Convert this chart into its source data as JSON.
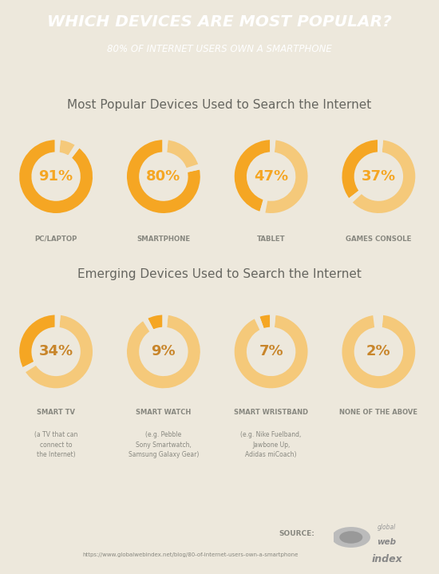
{
  "title": "WHICH DEVICES ARE MOST POPULAR?",
  "subtitle": "80% OF INTERNET USERS OWN A SMARTPHONE",
  "header_bg": "#F5B942",
  "bg_color": "#EDE8DC",
  "section1_title": "Most Popular Devices Used to Search the Internet",
  "section2_title": "Emerging Devices Used to Search the Internet",
  "popular_devices": [
    {
      "label": "PC/LAPTOP",
      "pct": 91,
      "color_main": "#F5A623",
      "color_light": "#F5C97A"
    },
    {
      "label": "SMARTPHONE",
      "pct": 80,
      "color_main": "#F5A623",
      "color_light": "#F5C97A"
    },
    {
      "label": "TABLET",
      "pct": 47,
      "color_main": "#F5A623",
      "color_light": "#F5C97A"
    },
    {
      "label": "GAMES CONSOLE",
      "pct": 37,
      "color_main": "#F5A623",
      "color_light": "#F5C97A"
    }
  ],
  "emerging_devices": [
    {
      "label": "SMART TV",
      "sublabel": "(a TV that can\nconnect to\nthe Internet)",
      "pct": 34,
      "color_main": "#F5A623",
      "color_light": "#F5C97A"
    },
    {
      "label": "SMART WATCH",
      "sublabel": "(e.g. Pebble\nSony Smartwatch,\nSamsung Galaxy Gear)",
      "pct": 9,
      "color_main": "#F5A623",
      "color_light": "#F5C97A"
    },
    {
      "label": "SMART WRISTBAND",
      "sublabel": "(e.g. Nike Fuelband,\nJawbone Up,\nAdidas miCoach)",
      "pct": 7,
      "color_main": "#F5A623",
      "color_light": "#F5C97A"
    },
    {
      "label": "NONE OF THE ABOVE",
      "sublabel": "",
      "pct": 2,
      "color_main": "#F5A623",
      "color_light": "#F5C97A"
    }
  ],
  "source_text": "SOURCE:",
  "url_text": "https://www.globalwebindex.net/blog/80-of-internet-users-own-a-smartphone",
  "divider_color": "#E8A020",
  "label_color": "#888880",
  "section_title_color": "#666660",
  "pct_text_color_popular": "#F5A623",
  "pct_text_color_emerging": "#C8852A"
}
